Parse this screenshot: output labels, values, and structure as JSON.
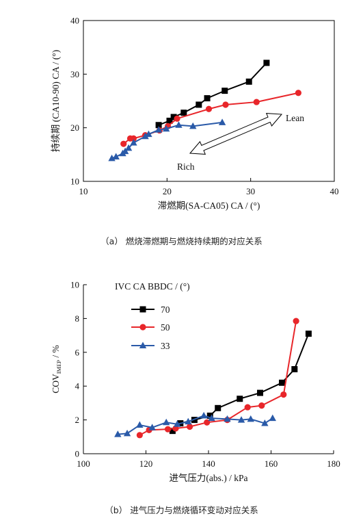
{
  "chart_data": [
    {
      "type": "scatter",
      "xlabel": "滞燃期(SA-CA05) CA / (°)",
      "ylabel": "持续期 (CA10-90) CA / (°)",
      "xlim": [
        10,
        40
      ],
      "ylim": [
        10,
        40
      ],
      "xticks": [
        "10",
        "20",
        "30",
        "40"
      ],
      "yticks": [
        "10",
        "20",
        "30",
        "40"
      ],
      "grid": false,
      "series": [
        {
          "color": "#000000",
          "marker": "square",
          "x": [
            19.0,
            20.3,
            20.8,
            22.0,
            23.8,
            24.8,
            26.9,
            29.8,
            31.9
          ],
          "y": [
            20.5,
            21.3,
            22.0,
            22.8,
            24.3,
            25.5,
            26.9,
            28.6,
            32.1
          ]
        },
        {
          "color": "#e8262a",
          "marker": "circle",
          "x": [
            14.8,
            15.6,
            16.0,
            17.4,
            19.1,
            20.1,
            21.2,
            25.0,
            27.0,
            30.7,
            35.7
          ],
          "y": [
            17.0,
            18.0,
            18.0,
            18.6,
            19.5,
            20.3,
            21.7,
            23.5,
            24.3,
            24.8,
            26.5
          ]
        },
        {
          "color": "#2a5aa8",
          "marker": "triangle",
          "x": [
            13.4,
            13.9,
            14.7,
            15.0,
            15.4,
            16.0,
            17.4,
            17.8,
            19.0,
            19.9,
            21.4,
            23.1,
            26.6
          ],
          "y": [
            14.3,
            14.6,
            15.2,
            15.6,
            16.2,
            17.2,
            18.4,
            18.8,
            19.6,
            19.8,
            20.5,
            20.3,
            21.0
          ]
        }
      ],
      "annotations": {
        "lean": "Lean",
        "rich": "Rich"
      },
      "caption": "（a） 燃烧滞燃期与燃烧持续期的对应关系"
    },
    {
      "type": "line",
      "xlabel": "进气压力(abs.) / kPa",
      "ylabel": "COV",
      "ylabel_sub": "IMEP",
      "ylabel_unit": " / %",
      "xlim": [
        100,
        180
      ],
      "ylim": [
        0,
        10
      ],
      "xticks": [
        "100",
        "120",
        "140",
        "160",
        "180"
      ],
      "yticks": [
        "0",
        "2",
        "4",
        "6",
        "8",
        "10"
      ],
      "grid": false,
      "legend": {
        "title": "IVC CA BBDC / (°)",
        "position": "top-left"
      },
      "series": [
        {
          "name": "70",
          "color": "#000000",
          "marker": "square",
          "x": [
            128.5,
            131.0,
            135.5,
            140.5,
            143.0,
            150.0,
            156.5,
            163.5,
            167.5,
            172.0
          ],
          "y": [
            1.35,
            1.8,
            2.0,
            2.25,
            2.7,
            3.25,
            3.6,
            4.2,
            5.0,
            7.1
          ]
        },
        {
          "name": "50",
          "color": "#e8262a",
          "marker": "circle",
          "x": [
            118.0,
            121.0,
            127.0,
            129.5,
            134.0,
            139.5,
            146.0,
            152.5,
            157.0,
            164.0,
            168.0
          ],
          "y": [
            1.1,
            1.4,
            1.45,
            1.5,
            1.6,
            1.85,
            2.0,
            2.75,
            2.85,
            3.5,
            7.85
          ]
        },
        {
          "name": "33",
          "color": "#2a5aa8",
          "marker": "triangle",
          "x": [
            111.0,
            114.0,
            118.0,
            122.0,
            126.5,
            130.0,
            133.5,
            138.5,
            141.0,
            146.0,
            150.5,
            153.5,
            158.0,
            160.5
          ],
          "y": [
            1.15,
            1.2,
            1.7,
            1.55,
            1.85,
            1.75,
            1.9,
            2.25,
            2.1,
            2.05,
            2.0,
            2.05,
            1.8,
            2.1
          ]
        }
      ],
      "caption": "（b） 进气压力与燃烧循环变动对应关系"
    }
  ]
}
